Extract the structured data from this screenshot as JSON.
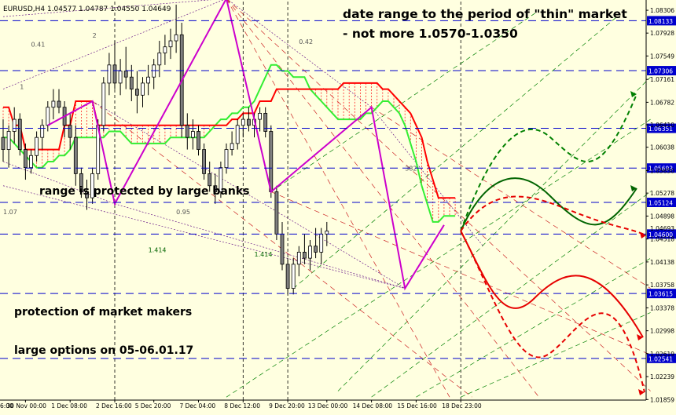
{
  "chart_data": {
    "type": "candlestick",
    "symbol_header": "EURUSD,H4  1.04577 1.04787 1.04550 1.04649",
    "background_color": "#ffffe0",
    "ylim": [
      1.0185,
      1.0845
    ],
    "price_ticks": [
      "1.08306",
      "1.07928",
      "1.07549",
      "1.07161",
      "1.06782",
      "1.06410",
      "1.06038",
      "1.05650",
      "1.05278",
      "1.04898",
      "1.04518",
      "1.04138",
      "1.03758",
      "1.03378",
      "1.02998",
      "1.02619",
      "1.02239",
      "1.01859"
    ],
    "time_ticks": [
      {
        "label": "30 Nov 00:00",
        "bar": 4
      },
      {
        "label": "1 Dec 08:00",
        "bar": 12
      },
      {
        "label": "2 Dec 16:00",
        "bar": 20
      },
      {
        "label": "5 Dec 20:00",
        "bar": 27
      },
      {
        "label": "7 Dec 04:00",
        "bar": 35
      },
      {
        "label": "8 Dec 12:00",
        "bar": 43
      },
      {
        "label": "9 Dec 20:00",
        "bar": 51
      },
      {
        "label": "13 Dec 00:00",
        "bar": 58
      },
      {
        "label": "14 Dec 08:00",
        "bar": 66
      },
      {
        "label": "15 Dec 16:00",
        "bar": 74
      },
      {
        "label": "18 Dec 23:00",
        "bar": 82
      }
    ],
    "time_ticks_left_partial": "6:00",
    "level_lines": [
      {
        "price": 1.08133,
        "label": "1.08133"
      },
      {
        "price": 1.07306,
        "label": "1.07306"
      },
      {
        "price": 1.06351,
        "label": "1.06351"
      },
      {
        "price": 1.05693,
        "label": "1.05693"
      },
      {
        "price": 1.05124,
        "label": "1.05124"
      },
      {
        "price": 1.046,
        "label": "1.04600"
      },
      {
        "price": 1.03615,
        "label": "1.03615"
      },
      {
        "price": 1.02541,
        "label": "1.02541"
      }
    ],
    "current_price_label": "1.04693",
    "candles": [
      [
        1.062,
        1.065,
        1.058,
        1.06
      ],
      [
        1.06,
        1.064,
        1.057,
        1.063
      ],
      [
        1.063,
        1.067,
        1.061,
        1.065
      ],
      [
        1.065,
        1.066,
        1.059,
        1.06
      ],
      [
        1.06,
        1.061,
        1.055,
        1.057
      ],
      [
        1.057,
        1.06,
        1.056,
        1.059
      ],
      [
        1.059,
        1.063,
        1.058,
        1.062
      ],
      [
        1.062,
        1.065,
        1.06,
        1.064
      ],
      [
        1.064,
        1.068,
        1.063,
        1.067
      ],
      [
        1.067,
        1.07,
        1.065,
        1.068
      ],
      [
        1.068,
        1.07,
        1.066,
        1.067
      ],
      [
        1.067,
        1.068,
        1.062,
        1.064
      ],
      [
        1.064,
        1.066,
        1.06,
        1.062
      ],
      [
        1.062,
        1.064,
        1.054,
        1.056
      ],
      [
        1.056,
        1.057,
        1.052,
        1.053
      ],
      [
        1.053,
        1.055,
        1.05,
        1.052
      ],
      [
        1.052,
        1.057,
        1.051,
        1.056
      ],
      [
        1.056,
        1.065,
        1.055,
        1.064
      ],
      [
        1.064,
        1.072,
        1.063,
        1.071
      ],
      [
        1.071,
        1.076,
        1.069,
        1.074
      ],
      [
        1.074,
        1.078,
        1.07,
        1.071
      ],
      [
        1.071,
        1.075,
        1.069,
        1.073
      ],
      [
        1.073,
        1.077,
        1.07,
        1.072
      ],
      [
        1.072,
        1.074,
        1.068,
        1.07
      ],
      [
        1.07,
        1.073,
        1.066,
        1.069
      ],
      [
        1.069,
        1.072,
        1.067,
        1.071
      ],
      [
        1.071,
        1.074,
        1.069,
        1.072
      ],
      [
        1.072,
        1.075,
        1.07,
        1.074
      ],
      [
        1.074,
        1.078,
        1.072,
        1.076
      ],
      [
        1.076,
        1.079,
        1.074,
        1.077
      ],
      [
        1.077,
        1.08,
        1.075,
        1.078
      ],
      [
        1.078,
        1.084,
        1.076,
        1.079
      ],
      [
        1.079,
        1.081,
        1.062,
        1.064
      ],
      [
        1.064,
        1.066,
        1.06,
        1.062
      ],
      [
        1.062,
        1.065,
        1.06,
        1.063
      ],
      [
        1.063,
        1.064,
        1.059,
        1.06
      ],
      [
        1.06,
        1.061,
        1.055,
        1.056
      ],
      [
        1.056,
        1.058,
        1.053,
        1.054
      ],
      [
        1.054,
        1.056,
        1.051,
        1.053
      ],
      [
        1.053,
        1.058,
        1.052,
        1.057
      ],
      [
        1.057,
        1.061,
        1.056,
        1.06
      ],
      [
        1.06,
        1.063,
        1.059,
        1.061
      ],
      [
        1.061,
        1.065,
        1.06,
        1.064
      ],
      [
        1.064,
        1.066,
        1.062,
        1.065
      ],
      [
        1.065,
        1.067,
        1.063,
        1.064
      ],
      [
        1.064,
        1.066,
        1.062,
        1.065
      ],
      [
        1.065,
        1.067,
        1.063,
        1.066
      ],
      [
        1.066,
        1.067,
        1.062,
        1.063
      ],
      [
        1.063,
        1.064,
        1.052,
        1.053
      ],
      [
        1.053,
        1.054,
        1.045,
        1.046
      ],
      [
        1.046,
        1.048,
        1.04,
        1.041
      ],
      [
        1.041,
        1.042,
        1.036,
        1.037
      ],
      [
        1.037,
        1.042,
        1.036,
        1.041
      ],
      [
        1.041,
        1.044,
        1.039,
        1.043
      ],
      [
        1.043,
        1.046,
        1.041,
        1.042
      ],
      [
        1.042,
        1.045,
        1.04,
        1.044
      ],
      [
        1.044,
        1.047,
        1.042,
        1.043
      ],
      [
        1.043,
        1.047,
        1.041,
        1.046
      ],
      [
        1.046,
        1.048,
        1.044,
        1.0465
      ]
    ],
    "kijun": [
      1.067,
      1.067,
      1.064,
      1.064,
      1.06,
      1.06,
      1.06,
      1.06,
      1.06,
      1.06,
      1.06,
      1.064,
      1.064,
      1.068,
      1.068,
      1.068,
      1.068,
      1.064,
      1.064,
      1.064,
      1.064,
      1.064,
      1.064,
      1.064,
      1.064,
      1.064,
      1.064,
      1.064,
      1.064,
      1.064,
      1.064,
      1.064,
      1.064,
      1.064,
      1.064,
      1.064,
      1.064,
      1.064,
      1.064,
      1.064,
      1.064,
      1.065,
      1.065,
      1.066,
      1.066,
      1.066,
      1.068,
      1.068,
      1.068,
      1.07,
      1.07,
      1.07,
      1.07,
      1.07,
      1.07,
      1.07,
      1.07,
      1.07,
      1.07,
      1.07,
      1.07,
      1.071,
      1.071,
      1.071,
      1.071,
      1.071,
      1.071,
      1.071,
      1.07,
      1.07,
      1.069,
      1.068,
      1.067,
      1.066,
      1.064,
      1.062,
      1.058,
      1.055,
      1.052,
      1.052,
      1.052,
      1.052
    ],
    "senkou": [
      1.062,
      1.062,
      1.061,
      1.06,
      1.059,
      1.058,
      1.057,
      1.057,
      1.058,
      1.058,
      1.059,
      1.059,
      1.06,
      1.062,
      1.062,
      1.062,
      1.062,
      1.062,
      1.062,
      1.063,
      1.063,
      1.063,
      1.062,
      1.061,
      1.061,
      1.061,
      1.061,
      1.061,
      1.061,
      1.061,
      1.062,
      1.062,
      1.062,
      1.062,
      1.062,
      1.062,
      1.062,
      1.063,
      1.064,
      1.065,
      1.065,
      1.066,
      1.066,
      1.067,
      1.067,
      1.068,
      1.07,
      1.072,
      1.074,
      1.074,
      1.073,
      1.073,
      1.072,
      1.072,
      1.072,
      1.07,
      1.069,
      1.068,
      1.067,
      1.066,
      1.065,
      1.065,
      1.065,
      1.065,
      1.065,
      1.066,
      1.066,
      1.067,
      1.068,
      1.068,
      1.067,
      1.066,
      1.064,
      1.061,
      1.058,
      1.054,
      1.051,
      1.048,
      1.048,
      1.049,
      1.049,
      1.049
    ],
    "zigzag": [
      [
        8,
        1.064
      ],
      [
        16,
        1.068
      ],
      [
        20,
        1.051
      ],
      [
        40,
        1.085
      ],
      [
        48,
        1.053
      ],
      [
        66,
        1.067
      ],
      [
        72,
        1.037
      ],
      [
        79,
        1.0475
      ]
    ],
    "fib_labels": [
      {
        "text": "2",
        "bar": 16,
        "price": 1.0785
      },
      {
        "text": "0.41",
        "bar": 5,
        "price": 1.077
      },
      {
        "text": "0.42",
        "bar": 53,
        "price": 1.0775
      },
      {
        "text": "1",
        "bar": 3,
        "price": 1.07
      },
      {
        "text": "1.07",
        "bar": 0,
        "price": 1.0493
      },
      {
        "text": "0.95",
        "bar": 31,
        "price": 1.0493
      },
      {
        "text": "382",
        "bar": 72,
        "price": 1.0565
      },
      {
        "text": "1.414",
        "bar": 26,
        "price": 1.043
      },
      {
        "text": "1.414",
        "bar": 45,
        "price": 1.0423
      }
    ],
    "annotations": {
      "top_line1": "date range to the period of \"thin\" market",
      "top_line2": "- not more 1.0570-1.0350",
      "mid": "range is protected by large banks",
      "bottom1": "protection of market makers",
      "bottom2": "large options on 05-06.01.17"
    },
    "forecast_colors": {
      "green_dark": "#006400",
      "green_dashed": "#008000",
      "red_solid": "#e60000",
      "red_dashed": "#e60000"
    },
    "colors": {
      "bull_candle": "#ffffff",
      "bear_candle": "#808080",
      "kijun": "#ff0000",
      "senkou": "#33ee33",
      "zigzag": "#cc00cc",
      "levels": "#0000cc",
      "level_label_bg": "#0000cc",
      "cloud_hatch": "#ff2020"
    }
  }
}
